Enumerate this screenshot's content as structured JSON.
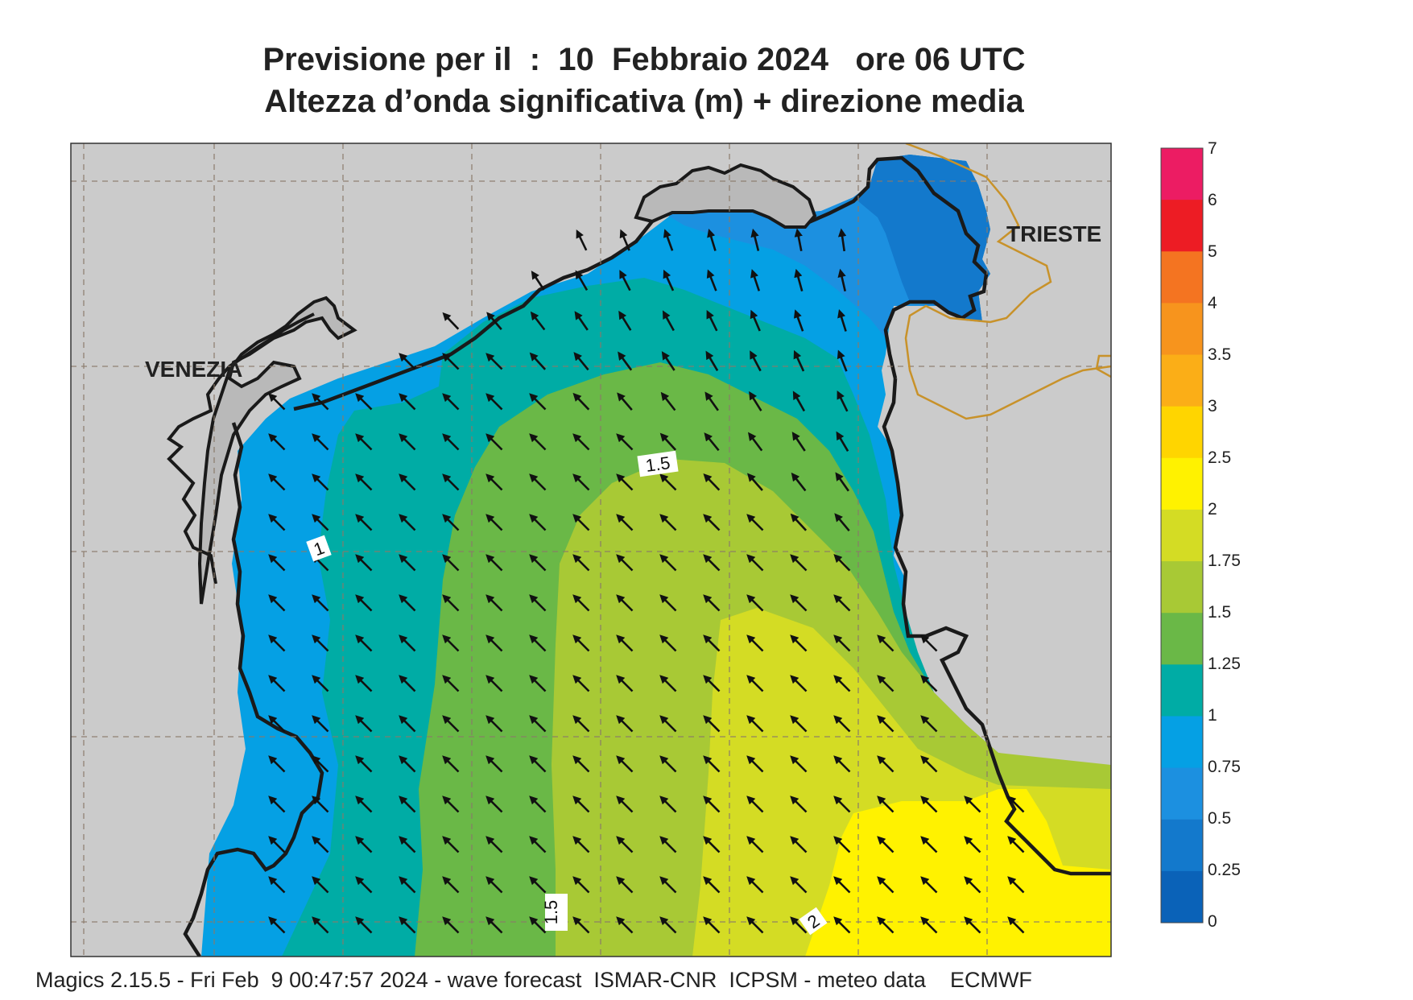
{
  "header": {
    "title_line1": "Previsione per il  :  10  Febbraio 2024   ore 06 UTC",
    "title_line2": "Altezza d’onda significativa (m) + direzione media"
  },
  "map": {
    "cities": [
      {
        "name": "VENEZIA"
      },
      {
        "name": "TRIESTE"
      }
    ],
    "contour_labels": [
      "1.5",
      "1",
      "1.5",
      "2"
    ],
    "wave_direction": "north-west",
    "colors": {
      "land": "#cbcbcb",
      "coastline": "#1a1a1a",
      "border": "#c8922a",
      "grid": "#8a7a6a"
    }
  },
  "colorbar": {
    "ticks": [
      "0",
      "0.25",
      "0.5",
      "0.75",
      "1",
      "1.25",
      "1.5",
      "1.75",
      "2",
      "2.5",
      "3",
      "3.5",
      "4",
      "5",
      "6",
      "7"
    ],
    "colors": [
      "#0a62b8",
      "#1379cc",
      "#1c90e0",
      "#05a0e4",
      "#00aca5",
      "#6ab847",
      "#a8c935",
      "#d4dc24",
      "#fff200",
      "#ffd500",
      "#fbae17",
      "#f7941d",
      "#f47421",
      "#ed1c24",
      "#ec1c63"
    ]
  },
  "footer": {
    "text": "Magics 2.15.5 - Fri Feb  9 00:47:57 2024 - wave forecast  ISMAR-CNR  ICPSM - meteo data    ECMWF"
  }
}
